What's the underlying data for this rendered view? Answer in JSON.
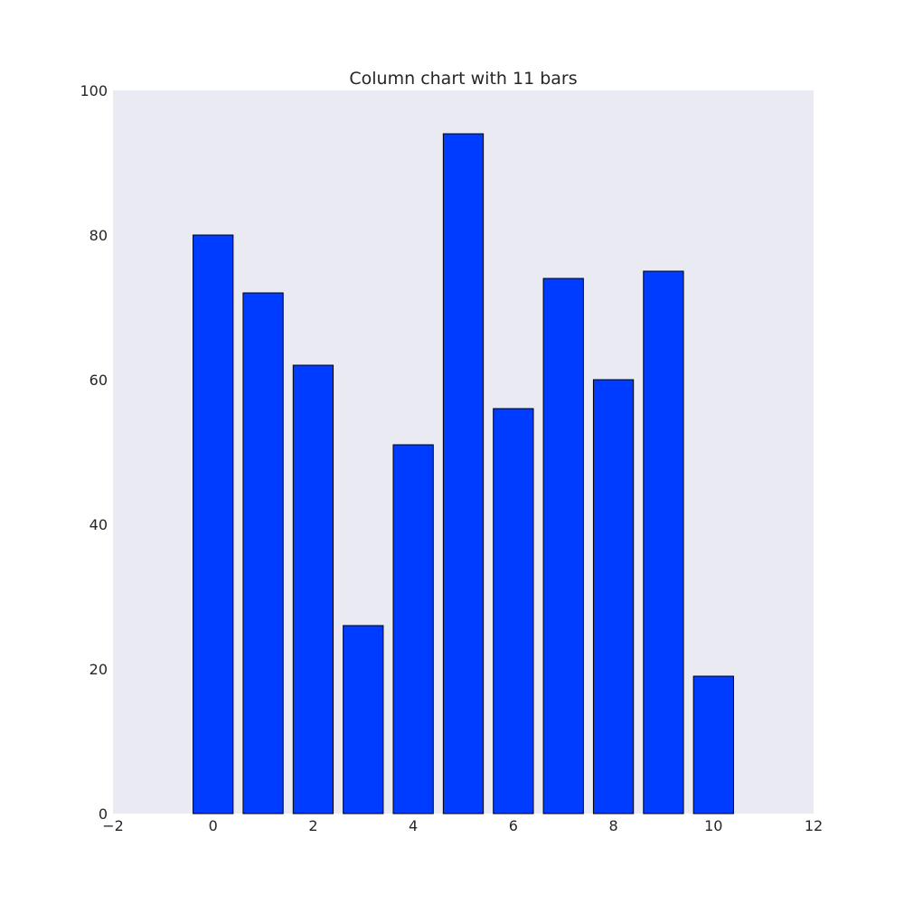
{
  "chart_data": {
    "type": "bar",
    "title": "Column chart with 11 bars",
    "xlabel": "",
    "ylabel": "",
    "x": [
      0,
      1,
      2,
      3,
      4,
      5,
      6,
      7,
      8,
      9,
      10
    ],
    "values": [
      80,
      72,
      62,
      26,
      51,
      94,
      56,
      74,
      60,
      75,
      19
    ],
    "bar_width": 0.8,
    "xlim": [
      -2,
      12
    ],
    "ylim": [
      0,
      100
    ],
    "xticks": [
      -2,
      0,
      2,
      4,
      6,
      8,
      10,
      12
    ],
    "yticks": [
      0,
      20,
      40,
      60,
      80,
      100
    ],
    "xtick_labels": [
      "−2",
      "0",
      "2",
      "4",
      "6",
      "8",
      "10",
      "12"
    ],
    "ytick_labels": [
      "0",
      "20",
      "40",
      "60",
      "80",
      "100"
    ],
    "grid": false,
    "colors": {
      "bar_fill": "#003cff",
      "bar_edge": "#000000",
      "plot_background": "#eaeaf2",
      "text": "#262626"
    }
  }
}
